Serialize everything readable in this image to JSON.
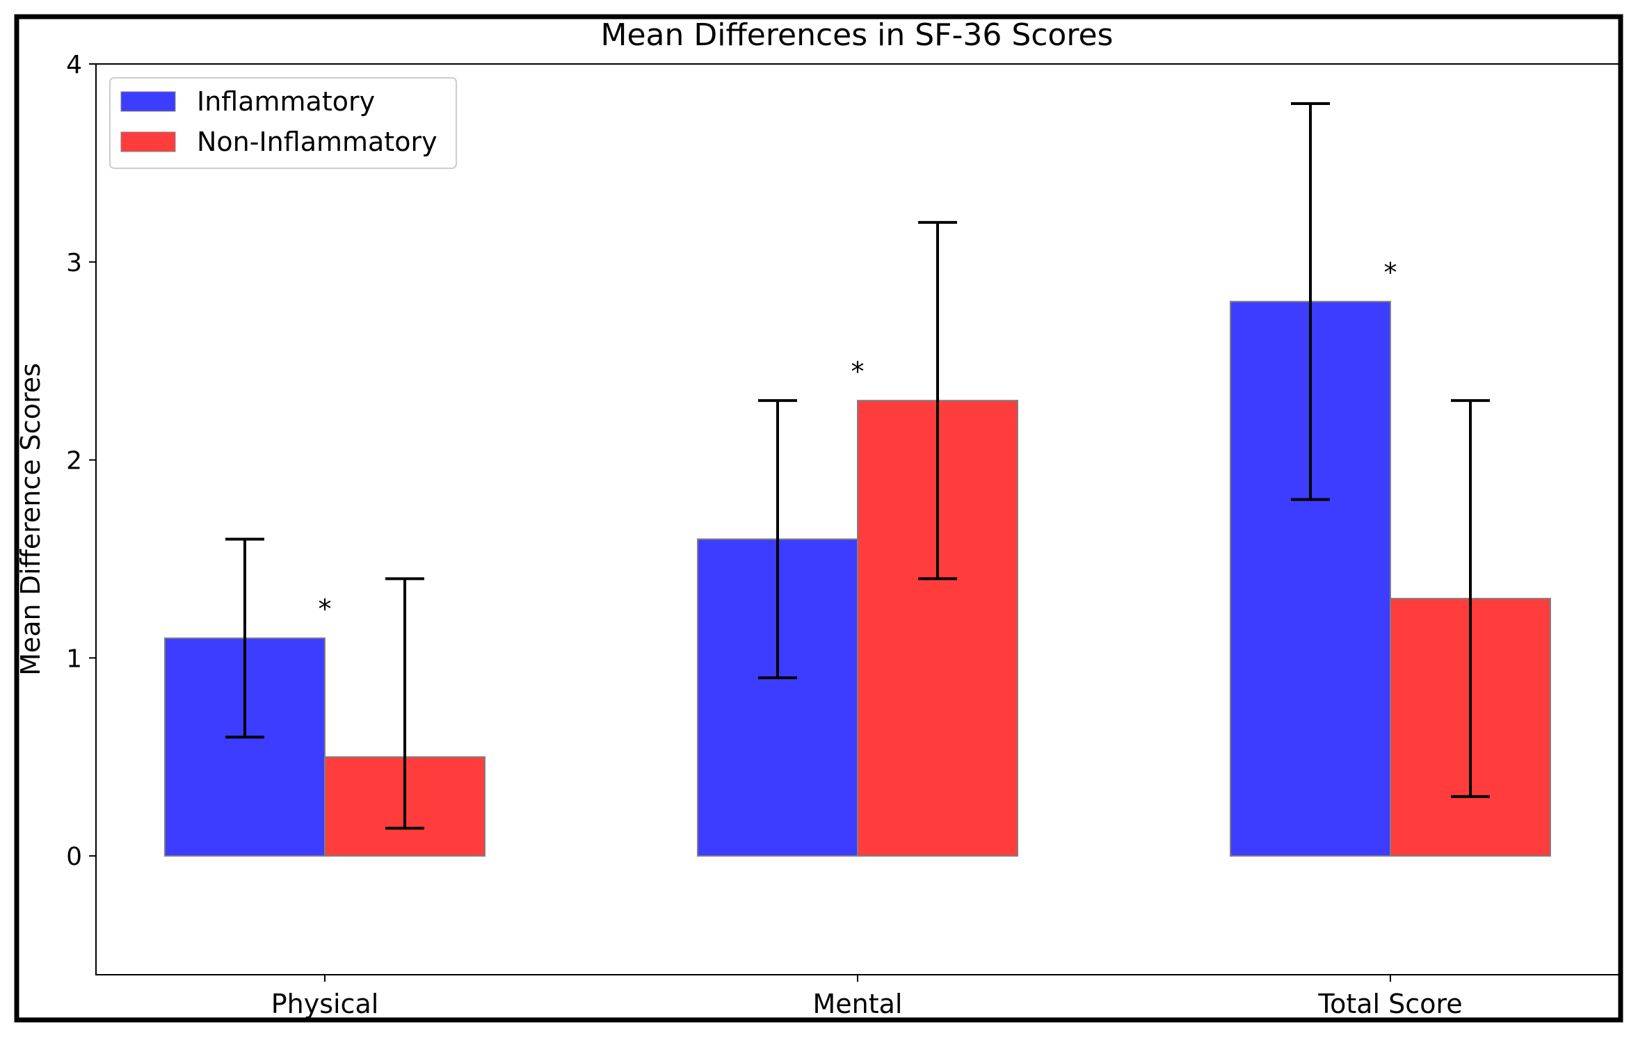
{
  "chart_data": {
    "type": "bar",
    "title": "Mean Differences in SF-36 Scores",
    "xlabel": "",
    "ylabel": "Mean Difference Scores",
    "ylim": [
      -0.6,
      4.0
    ],
    "yticks": [
      0,
      1,
      2,
      3,
      4
    ],
    "grid": false,
    "legend_position": "top-left",
    "categories": [
      "Physical",
      "Mental",
      "Total Score"
    ],
    "series": [
      {
        "name": "Inflammatory",
        "color": "#3d3dff",
        "values": [
          1.1,
          1.6,
          2.8
        ],
        "error_low": [
          0.6,
          0.9,
          1.8
        ],
        "error_high": [
          1.6,
          2.3,
          3.8
        ]
      },
      {
        "name": "Non-Inflammatory",
        "color": "#ff3d3d",
        "values": [
          0.5,
          2.3,
          1.3
        ],
        "error_low": [
          0.14,
          1.4,
          0.3
        ],
        "error_high": [
          1.4,
          3.2,
          2.3
        ]
      }
    ],
    "annotations": [
      {
        "text": "*",
        "category": "Physical",
        "y": 1.25
      },
      {
        "text": "*",
        "category": "Mental",
        "y": 2.45
      },
      {
        "text": "*",
        "category": "Total Score",
        "y": 2.95
      }
    ]
  }
}
